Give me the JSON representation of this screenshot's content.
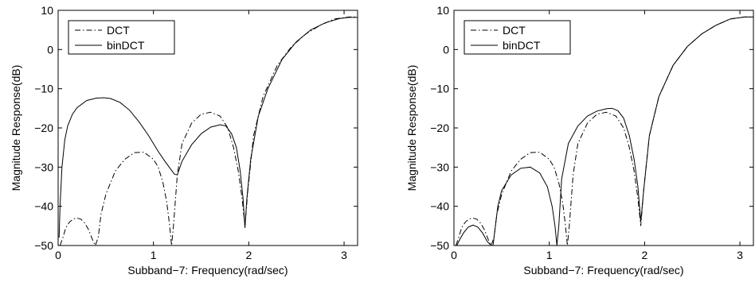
{
  "chart_data": [
    {
      "type": "line",
      "title": "",
      "xlabel": "Subband−7: Frequency(rad/sec)",
      "ylabel": "Magnitude Response(dB)",
      "xlim": [
        0,
        3.1416
      ],
      "ylim": [
        -50,
        10
      ],
      "xticks": [
        0,
        1,
        2,
        3
      ],
      "xtick_labels": [
        "0",
        "1",
        "2",
        "3"
      ],
      "yticks": [
        10,
        0,
        -10,
        -20,
        -30,
        -40,
        -50
      ],
      "ytick_labels": [
        "10",
        "0",
        "−10",
        "−20",
        "−30",
        "−40",
        "−50"
      ],
      "grid": false,
      "legend_position": "top-left",
      "series": [
        {
          "name": "DCT",
          "style": "dash-dot",
          "color": "#000000",
          "x": [
            0.02,
            0.05,
            0.08,
            0.12,
            0.16,
            0.2,
            0.24,
            0.28,
            0.32,
            0.36,
            0.39,
            0.42,
            0.45,
            0.5,
            0.6,
            0.7,
            0.8,
            0.9,
            1.0,
            1.05,
            1.1,
            1.14,
            1.17,
            1.19,
            1.21,
            1.25,
            1.3,
            1.4,
            1.5,
            1.6,
            1.7,
            1.78,
            1.84,
            1.89,
            1.93,
            1.96,
            1.99,
            2.05,
            2.15,
            2.3,
            2.45,
            2.6,
            2.75,
            2.9,
            3.05,
            3.14
          ],
          "y": [
            -50,
            -48,
            -45.5,
            -44,
            -43.2,
            -43,
            -43.3,
            -44.3,
            -46,
            -48.5,
            -50,
            -48,
            -42,
            -37,
            -31,
            -28,
            -26.3,
            -26.2,
            -28,
            -30,
            -34,
            -39,
            -45,
            -50,
            -45,
            -32,
            -24,
            -18.8,
            -16.5,
            -16,
            -17,
            -20,
            -25,
            -31,
            -38,
            -45,
            -36,
            -22,
            -12,
            -4,
            0.8,
            4,
            6.2,
            7.8,
            8.3,
            8.3
          ]
        },
        {
          "name": "binDCT",
          "style": "solid",
          "color": "#000000",
          "x": [
            0.01,
            0.02,
            0.04,
            0.07,
            0.1,
            0.15,
            0.2,
            0.3,
            0.4,
            0.48,
            0.55,
            0.65,
            0.75,
            0.85,
            0.95,
            1.05,
            1.12,
            1.18,
            1.22,
            1.25,
            1.3,
            1.4,
            1.5,
            1.6,
            1.7,
            1.76,
            1.82,
            1.87,
            1.91,
            1.94,
            1.96,
            1.98,
            2.02,
            2.1,
            2.2,
            2.35,
            2.5,
            2.65,
            2.8,
            2.95,
            3.05,
            3.14
          ],
          "y": [
            -48,
            -40,
            -30,
            -23,
            -19.5,
            -16.5,
            -14.8,
            -13,
            -12.4,
            -12.3,
            -12.5,
            -13.5,
            -15.5,
            -18.5,
            -22,
            -26,
            -28.5,
            -30.5,
            -31.8,
            -32,
            -28.5,
            -24.3,
            -21.5,
            -19.8,
            -19.2,
            -19.5,
            -21.5,
            -25,
            -31,
            -38,
            -45.5,
            -38,
            -28,
            -17,
            -10,
            -2.5,
            2,
            5,
            6.8,
            7.9,
            8.2,
            8.2
          ]
        }
      ]
    },
    {
      "type": "line",
      "title": "",
      "xlabel": "Subband−7: Frequency(rad/sec)",
      "ylabel": "Magnitude Response(dB)",
      "xlim": [
        0,
        3.1416
      ],
      "ylim": [
        -50,
        10
      ],
      "xticks": [
        0,
        1,
        2,
        3
      ],
      "xtick_labels": [
        "0",
        "1",
        "2",
        "3"
      ],
      "yticks": [
        10,
        0,
        -10,
        -20,
        -30,
        -40,
        -50
      ],
      "ytick_labels": [
        "10",
        "0",
        "−10",
        "−20",
        "−30",
        "−40",
        "−50"
      ],
      "grid": false,
      "legend_position": "top-left",
      "series": [
        {
          "name": "DCT",
          "style": "dash-dot",
          "color": "#000000",
          "x": [
            0.02,
            0.05,
            0.08,
            0.12,
            0.16,
            0.2,
            0.24,
            0.28,
            0.32,
            0.36,
            0.39,
            0.42,
            0.45,
            0.5,
            0.6,
            0.7,
            0.8,
            0.9,
            1.0,
            1.05,
            1.1,
            1.14,
            1.17,
            1.19,
            1.21,
            1.25,
            1.3,
            1.4,
            1.5,
            1.6,
            1.7,
            1.78,
            1.84,
            1.89,
            1.93,
            1.96,
            1.99,
            2.05,
            2.15,
            2.3,
            2.45,
            2.6,
            2.75,
            2.9,
            3.05,
            3.14
          ],
          "y": [
            -50,
            -48,
            -45.5,
            -44,
            -43.2,
            -43,
            -43.3,
            -44.3,
            -46,
            -48.5,
            -50,
            -48,
            -42,
            -37,
            -31,
            -28,
            -26.3,
            -26.2,
            -28,
            -30,
            -34,
            -39,
            -45,
            -50,
            -45,
            -32,
            -24,
            -18.8,
            -16.5,
            -16,
            -17,
            -20,
            -25,
            -31,
            -38,
            -45,
            -36,
            -22,
            -12,
            -4,
            0.8,
            4,
            6.2,
            7.8,
            8.3,
            8.3
          ]
        },
        {
          "name": "binDCT",
          "style": "solid",
          "color": "#000000",
          "x": [
            0.03,
            0.06,
            0.1,
            0.15,
            0.2,
            0.25,
            0.3,
            0.35,
            0.39,
            0.41,
            0.43,
            0.46,
            0.5,
            0.6,
            0.7,
            0.8,
            0.9,
            0.98,
            1.03,
            1.06,
            1.08,
            1.1,
            1.13,
            1.2,
            1.3,
            1.4,
            1.5,
            1.6,
            1.66,
            1.72,
            1.78,
            1.84,
            1.89,
            1.93,
            1.96,
            1.99,
            2.05,
            2.15,
            2.3,
            2.45,
            2.6,
            2.75,
            2.9,
            3.05,
            3.14
          ],
          "y": [
            -50,
            -48.5,
            -46.8,
            -45.3,
            -44.8,
            -45.3,
            -46.8,
            -49,
            -50,
            -50,
            -46,
            -40,
            -36,
            -32,
            -30.3,
            -30,
            -31.5,
            -35,
            -40,
            -45,
            -50,
            -45,
            -33,
            -24,
            -19.5,
            -17,
            -15.7,
            -15.1,
            -15,
            -15.6,
            -17.5,
            -22,
            -28,
            -35,
            -44,
            -36,
            -22,
            -12,
            -4,
            0.8,
            4,
            6.2,
            7.8,
            8.3,
            8.3
          ]
        }
      ]
    }
  ]
}
